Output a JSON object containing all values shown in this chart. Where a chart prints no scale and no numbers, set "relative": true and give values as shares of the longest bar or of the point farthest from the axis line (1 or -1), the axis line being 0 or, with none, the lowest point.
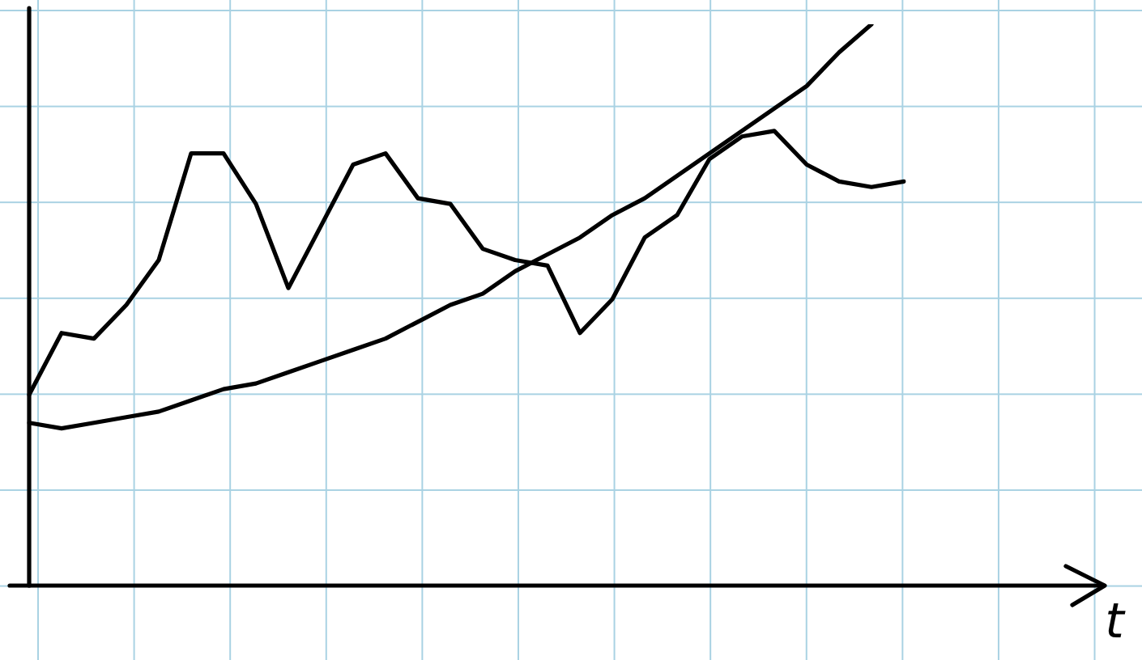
{
  "chart_data": {
    "type": "line",
    "xlabel": "t",
    "relative": true,
    "marker": "none",
    "categories": [
      null,
      null,
      null,
      null,
      null,
      null,
      null,
      null,
      null,
      null,
      null,
      null,
      null,
      null,
      null,
      null,
      null,
      null,
      null,
      null,
      null,
      null,
      null,
      null,
      null,
      null,
      null,
      null
    ],
    "series": [
      {
        "color": "#000000",
        "values": [
          0.29,
          0.28,
          0.29,
          0.3,
          0.31,
          0.33,
          0.35,
          0.36,
          0.38,
          0.4,
          0.42,
          0.44,
          0.47,
          0.5,
          0.52,
          0.56,
          0.59,
          0.62,
          0.66,
          0.69,
          0.73,
          0.77,
          0.81,
          0.85,
          0.89,
          0.95,
          1,
          null
        ]
      },
      {
        "color": "#000000",
        "values": [
          0.34,
          0.45,
          0.44,
          0.5,
          0.58,
          0.77,
          0.77,
          0.68,
          0.53,
          0.64,
          0.75,
          0.77,
          0.69,
          0.68,
          0.6,
          0.58,
          0.57,
          0.45,
          0.51,
          0.62,
          0.66,
          0.76,
          0.8,
          0.81,
          0.75,
          0.72,
          0.71,
          0.72
        ]
      }
    ]
  }
}
